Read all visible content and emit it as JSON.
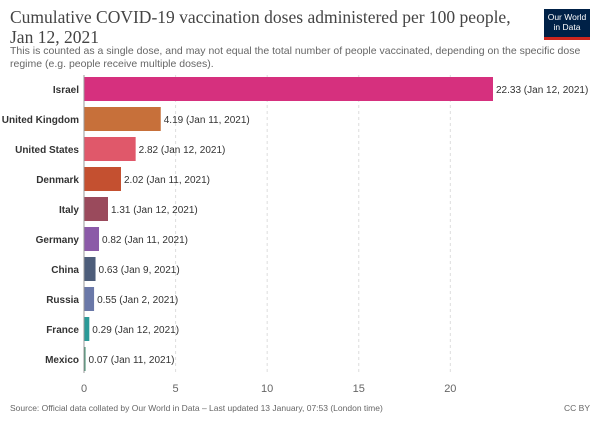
{
  "header": {
    "title": "Cumulative COVID-19 vaccination doses administered per 100 people, Jan 12, 2021",
    "subtitle": "This is counted as a single dose, and may not equal the total number of people vaccinated, depending on the specific dose regime (e.g. people receive multiple doses).",
    "logo_line1": "Our World",
    "logo_line2": "in Data"
  },
  "chart_data": {
    "type": "bar",
    "orientation": "horizontal",
    "title": "Cumulative COVID-19 vaccination doses administered per 100 people, Jan 12, 2021",
    "xlim": [
      0,
      22.33
    ],
    "xticks": [
      0,
      5,
      10,
      15,
      20
    ],
    "grid": true,
    "categories": [
      "Israel",
      "United Kingdom",
      "United States",
      "Denmark",
      "Italy",
      "Germany",
      "China",
      "Russia",
      "France",
      "Mexico"
    ],
    "values": [
      22.33,
      4.19,
      2.82,
      2.02,
      1.31,
      0.82,
      0.63,
      0.55,
      0.29,
      0.07
    ],
    "labels": [
      "22.33 (Jan 12, 2021)",
      "4.19 (Jan 11, 2021)",
      "2.82 (Jan 12, 2021)",
      "2.02 (Jan 11, 2021)",
      "1.31 (Jan 12, 2021)",
      "0.82 (Jan 11, 2021)",
      "0.63 (Jan 9, 2021)",
      "0.55 (Jan 2, 2021)",
      "0.29 (Jan 12, 2021)",
      "0.07 (Jan 11, 2021)"
    ],
    "colors": [
      "#d6307e",
      "#c7703a",
      "#e0586a",
      "#c45030",
      "#9a4a5c",
      "#8b5aa8",
      "#4d5d7a",
      "#6a78a8",
      "#2a9a98",
      "#3a8a6a"
    ]
  },
  "footer": {
    "source": "Source: Official data collated by Our World in Data – Last updated 13 January, 07:53 (London time)",
    "license": "CC BY"
  }
}
